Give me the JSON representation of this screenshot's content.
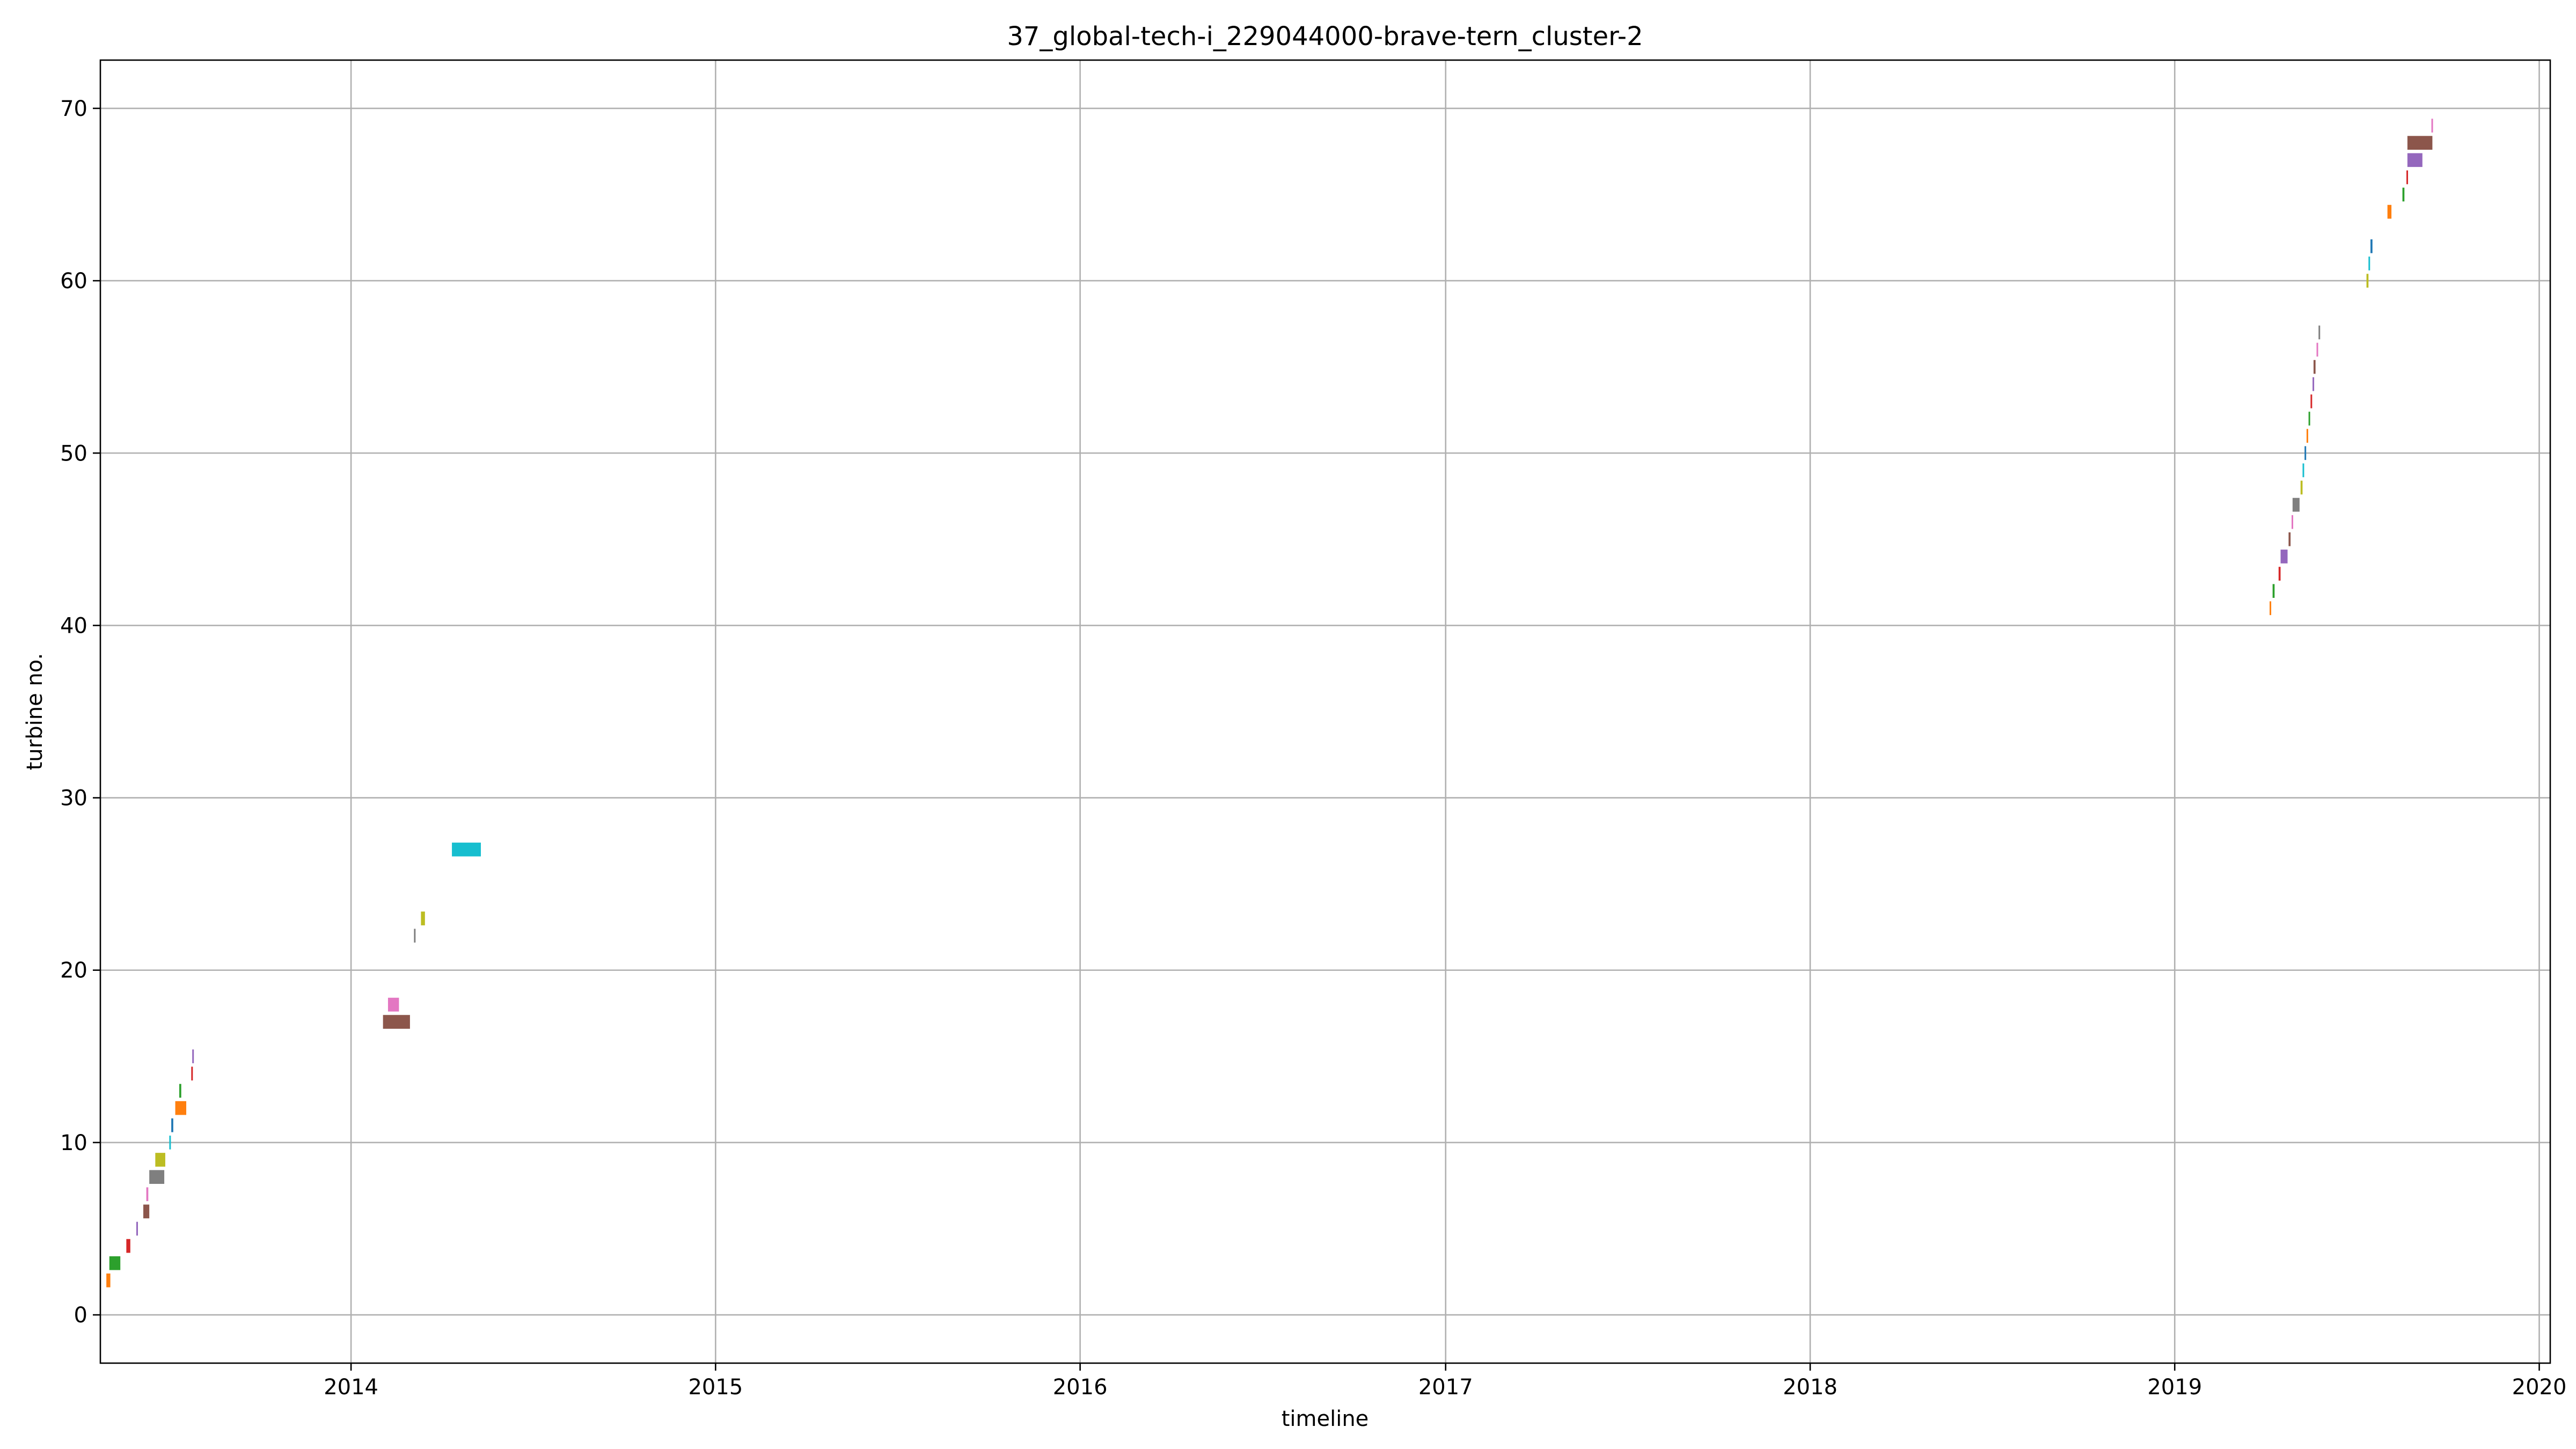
{
  "chart_data": {
    "type": "bar",
    "subtype": "gantt",
    "title": "37_global-tech-i_229044000-brave-tern_cluster-2",
    "xlabel": "timeline",
    "ylabel": "turbine no.",
    "x_axis_type": "date",
    "xlim": [
      "2013-04-25",
      "2020-01-12"
    ],
    "ylim": [
      -2.8,
      72.8
    ],
    "x_ticks": [
      {
        "label": "2014",
        "date": "2014-01-01"
      },
      {
        "label": "2015",
        "date": "2015-01-01"
      },
      {
        "label": "2016",
        "date": "2016-01-01"
      },
      {
        "label": "2017",
        "date": "2017-01-01"
      },
      {
        "label": "2018",
        "date": "2018-01-01"
      },
      {
        "label": "2019",
        "date": "2019-01-01"
      },
      {
        "label": "2020",
        "date": "2020-01-01"
      }
    ],
    "y_ticks": [
      0,
      10,
      20,
      30,
      40,
      50,
      60,
      70
    ],
    "grid": true,
    "legend": "none",
    "palette": [
      "#1f77b4",
      "#ff7f0e",
      "#2ca02c",
      "#d62728",
      "#9467bd",
      "#8c564b",
      "#e377c2",
      "#7f7f7f",
      "#bcbd22",
      "#17becf"
    ],
    "bars": [
      {
        "turbine": 2,
        "start": "2013-05-01",
        "end": "2013-05-05",
        "color": "#ff7f0e"
      },
      {
        "turbine": 3,
        "start": "2013-05-04",
        "end": "2013-05-15",
        "color": "#2ca02c"
      },
      {
        "turbine": 4,
        "start": "2013-05-21",
        "end": "2013-05-25",
        "color": "#d62728"
      },
      {
        "turbine": 5,
        "start": "2013-05-31",
        "end": "2013-06-01",
        "color": "#9467bd"
      },
      {
        "turbine": 6,
        "start": "2013-06-07",
        "end": "2013-06-13",
        "color": "#8c564b"
      },
      {
        "turbine": 7,
        "start": "2013-06-10",
        "end": "2013-06-12",
        "color": "#e377c2"
      },
      {
        "turbine": 8,
        "start": "2013-06-13",
        "end": "2013-06-28",
        "color": "#7f7f7f"
      },
      {
        "turbine": 9,
        "start": "2013-06-19",
        "end": "2013-06-29",
        "color": "#bcbd22"
      },
      {
        "turbine": 10,
        "start": "2013-07-03",
        "end": "2013-07-04",
        "color": "#17becf"
      },
      {
        "turbine": 11,
        "start": "2013-07-05",
        "end": "2013-07-07",
        "color": "#1f77b4"
      },
      {
        "turbine": 12,
        "start": "2013-07-09",
        "end": "2013-07-20",
        "color": "#ff7f0e"
      },
      {
        "turbine": 13,
        "start": "2013-07-13",
        "end": "2013-07-15",
        "color": "#2ca02c"
      },
      {
        "turbine": 14,
        "start": "2013-07-25",
        "end": "2013-07-26",
        "color": "#d62728"
      },
      {
        "turbine": 15,
        "start": "2013-07-26",
        "end": "2013-07-27",
        "color": "#9467bd"
      },
      {
        "turbine": 17,
        "start": "2014-02-02",
        "end": "2014-03-01",
        "color": "#8c564b"
      },
      {
        "turbine": 18,
        "start": "2014-02-07",
        "end": "2014-02-18",
        "color": "#e377c2"
      },
      {
        "turbine": 22,
        "start": "2014-03-05",
        "end": "2014-03-06",
        "color": "#7f7f7f"
      },
      {
        "turbine": 23,
        "start": "2014-03-12",
        "end": "2014-03-16",
        "color": "#bcbd22"
      },
      {
        "turbine": 27,
        "start": "2014-04-12",
        "end": "2014-05-11",
        "color": "#17becf"
      },
      {
        "turbine": 41,
        "start": "2019-04-06",
        "end": "2019-04-07",
        "color": "#ff7f0e"
      },
      {
        "turbine": 42,
        "start": "2019-04-09",
        "end": "2019-04-11",
        "color": "#2ca02c"
      },
      {
        "turbine": 43,
        "start": "2019-04-15",
        "end": "2019-04-17",
        "color": "#d62728"
      },
      {
        "turbine": 44,
        "start": "2019-04-17",
        "end": "2019-04-24",
        "color": "#9467bd"
      },
      {
        "turbine": 45,
        "start": "2019-04-25",
        "end": "2019-04-27",
        "color": "#8c564b"
      },
      {
        "turbine": 46,
        "start": "2019-04-28",
        "end": "2019-04-29",
        "color": "#e377c2"
      },
      {
        "turbine": 47,
        "start": "2019-04-29",
        "end": "2019-05-06",
        "color": "#7f7f7f"
      },
      {
        "turbine": 48,
        "start": "2019-05-07",
        "end": "2019-05-09",
        "color": "#bcbd22"
      },
      {
        "turbine": 49,
        "start": "2019-05-09",
        "end": "2019-05-10",
        "color": "#17becf"
      },
      {
        "turbine": 50,
        "start": "2019-05-11",
        "end": "2019-05-12",
        "color": "#1f77b4"
      },
      {
        "turbine": 51,
        "start": "2019-05-13",
        "end": "2019-05-14",
        "color": "#ff7f0e"
      },
      {
        "turbine": 52,
        "start": "2019-05-15",
        "end": "2019-05-16",
        "color": "#2ca02c"
      },
      {
        "turbine": 53,
        "start": "2019-05-17",
        "end": "2019-05-18",
        "color": "#d62728"
      },
      {
        "turbine": 54,
        "start": "2019-05-19",
        "end": "2019-05-20",
        "color": "#9467bd"
      },
      {
        "turbine": 55,
        "start": "2019-05-20",
        "end": "2019-05-22",
        "color": "#8c564b"
      },
      {
        "turbine": 56,
        "start": "2019-05-23",
        "end": "2019-05-24",
        "color": "#e377c2"
      },
      {
        "turbine": 57,
        "start": "2019-05-25",
        "end": "2019-05-26",
        "color": "#7f7f7f"
      },
      {
        "turbine": 60,
        "start": "2019-07-12",
        "end": "2019-07-14",
        "color": "#bcbd22"
      },
      {
        "turbine": 61,
        "start": "2019-07-14",
        "end": "2019-07-15",
        "color": "#17becf"
      },
      {
        "turbine": 62,
        "start": "2019-07-16",
        "end": "2019-07-18",
        "color": "#1f77b4"
      },
      {
        "turbine": 64,
        "start": "2019-08-02",
        "end": "2019-08-06",
        "color": "#ff7f0e"
      },
      {
        "turbine": 65,
        "start": "2019-08-17",
        "end": "2019-08-19",
        "color": "#2ca02c"
      },
      {
        "turbine": 66,
        "start": "2019-08-21",
        "end": "2019-08-22",
        "color": "#d62728"
      },
      {
        "turbine": 67,
        "start": "2019-08-22",
        "end": "2019-09-06",
        "color": "#9467bd"
      },
      {
        "turbine": 68,
        "start": "2019-08-22",
        "end": "2019-09-16",
        "color": "#8c564b"
      },
      {
        "turbine": 69,
        "start": "2019-09-15",
        "end": "2019-09-16",
        "color": "#e377c2"
      }
    ]
  }
}
